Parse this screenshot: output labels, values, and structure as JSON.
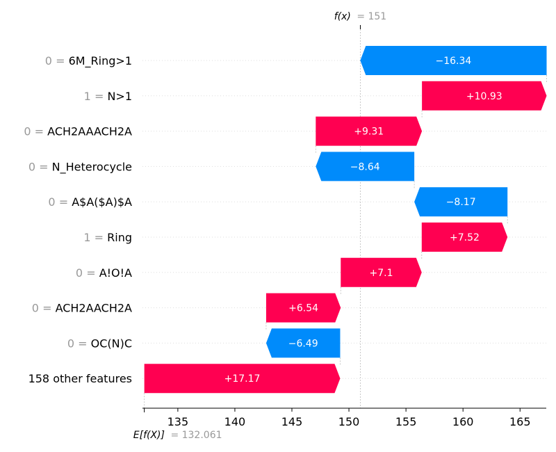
{
  "chart_data": {
    "type": "waterfall",
    "fx": {
      "label": "f(x)",
      "value_text": "= 151",
      "value": 151
    },
    "base": {
      "label": "E[f(X)]",
      "value_text": "= 132.061",
      "value": 132.061
    },
    "features": [
      {
        "value": "0 =",
        "name": "6M_Ring>1",
        "contribution": -16.34,
        "label": "−16.34"
      },
      {
        "value": "1 =",
        "name": "N>1",
        "contribution": 10.93,
        "label": "+10.93"
      },
      {
        "value": "0 =",
        "name": "ACH2AAACH2A",
        "contribution": 9.31,
        "label": "+9.31"
      },
      {
        "value": "0 =",
        "name": "N_Heterocycle",
        "contribution": -8.64,
        "label": "−8.64"
      },
      {
        "value": "0 =",
        "name": "A$A($A)$A",
        "contribution": -8.17,
        "label": "−8.17"
      },
      {
        "value": "1 =",
        "name": "Ring",
        "contribution": 7.52,
        "label": "+7.52"
      },
      {
        "value": "0 =",
        "name": "A!O!A",
        "contribution": 7.1,
        "label": "+7.1"
      },
      {
        "value": "0 =",
        "name": "ACH2AACH2A",
        "contribution": 6.54,
        "label": "+6.54"
      },
      {
        "value": "0 =",
        "name": "OC(N)C",
        "contribution": -6.49,
        "label": "−6.49"
      },
      {
        "value": "",
        "name": "158 other features",
        "contribution": 17.17,
        "label": "+17.17"
      }
    ],
    "xticks": [
      135,
      140,
      145,
      150,
      155,
      160,
      165
    ],
    "xlim": [
      131.9,
      167.3
    ],
    "colors": {
      "positive": "#ff0051",
      "negative": "#008bfb",
      "value_gray": "#999999",
      "grid": "#dddddd"
    }
  }
}
